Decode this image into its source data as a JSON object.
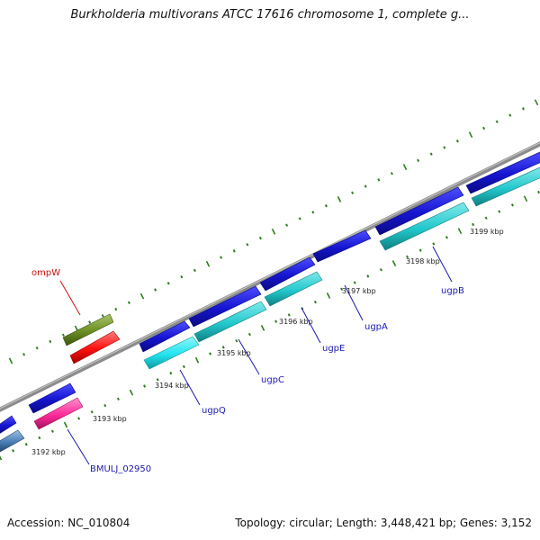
{
  "title": "Burkholderia multivorans ATCC 17616 chromosome 1, complete g...",
  "footer": {
    "accession": "Accession: NC_010804",
    "stats": "Topology: circular; Length: 3,448,421 bp; Genes: 3,152"
  },
  "colors": {
    "backbone": "#8c8c8c",
    "ticks": "#2f7d1f",
    "gene_label": "#1a1ab0",
    "ompw_label": "#cc1111",
    "forward_strand": "#1515d0",
    "ugp_reverse": "#22c8cc",
    "ugpQ_reverse": "#22e4ee",
    "bmul_reverse": "#ff2a9a",
    "ompw_reverse": "#ff1010",
    "ompw_forward": "#6b8e23",
    "left_reverse": "#4a7fb5"
  },
  "scale": {
    "labels": [
      {
        "text": "3192 kbp"
      },
      {
        "text": "3193 kbp"
      },
      {
        "text": "3194 kbp"
      },
      {
        "text": "3195 kbp"
      },
      {
        "text": "3196 kbp"
      },
      {
        "text": "3197 kbp"
      },
      {
        "text": "3198 kbp"
      },
      {
        "text": "3199 kbp"
      }
    ]
  },
  "genes": [
    {
      "name": "ompW",
      "color_key": "ompw_label"
    },
    {
      "name": "BMULJ_02950",
      "color_key": "gene_label"
    },
    {
      "name": "ugpQ",
      "color_key": "gene_label"
    },
    {
      "name": "ugpC",
      "color_key": "gene_label"
    },
    {
      "name": "ugpE",
      "color_key": "gene_label"
    },
    {
      "name": "ugpA",
      "color_key": "gene_label"
    },
    {
      "name": "ugpB",
      "color_key": "gene_label"
    }
  ]
}
